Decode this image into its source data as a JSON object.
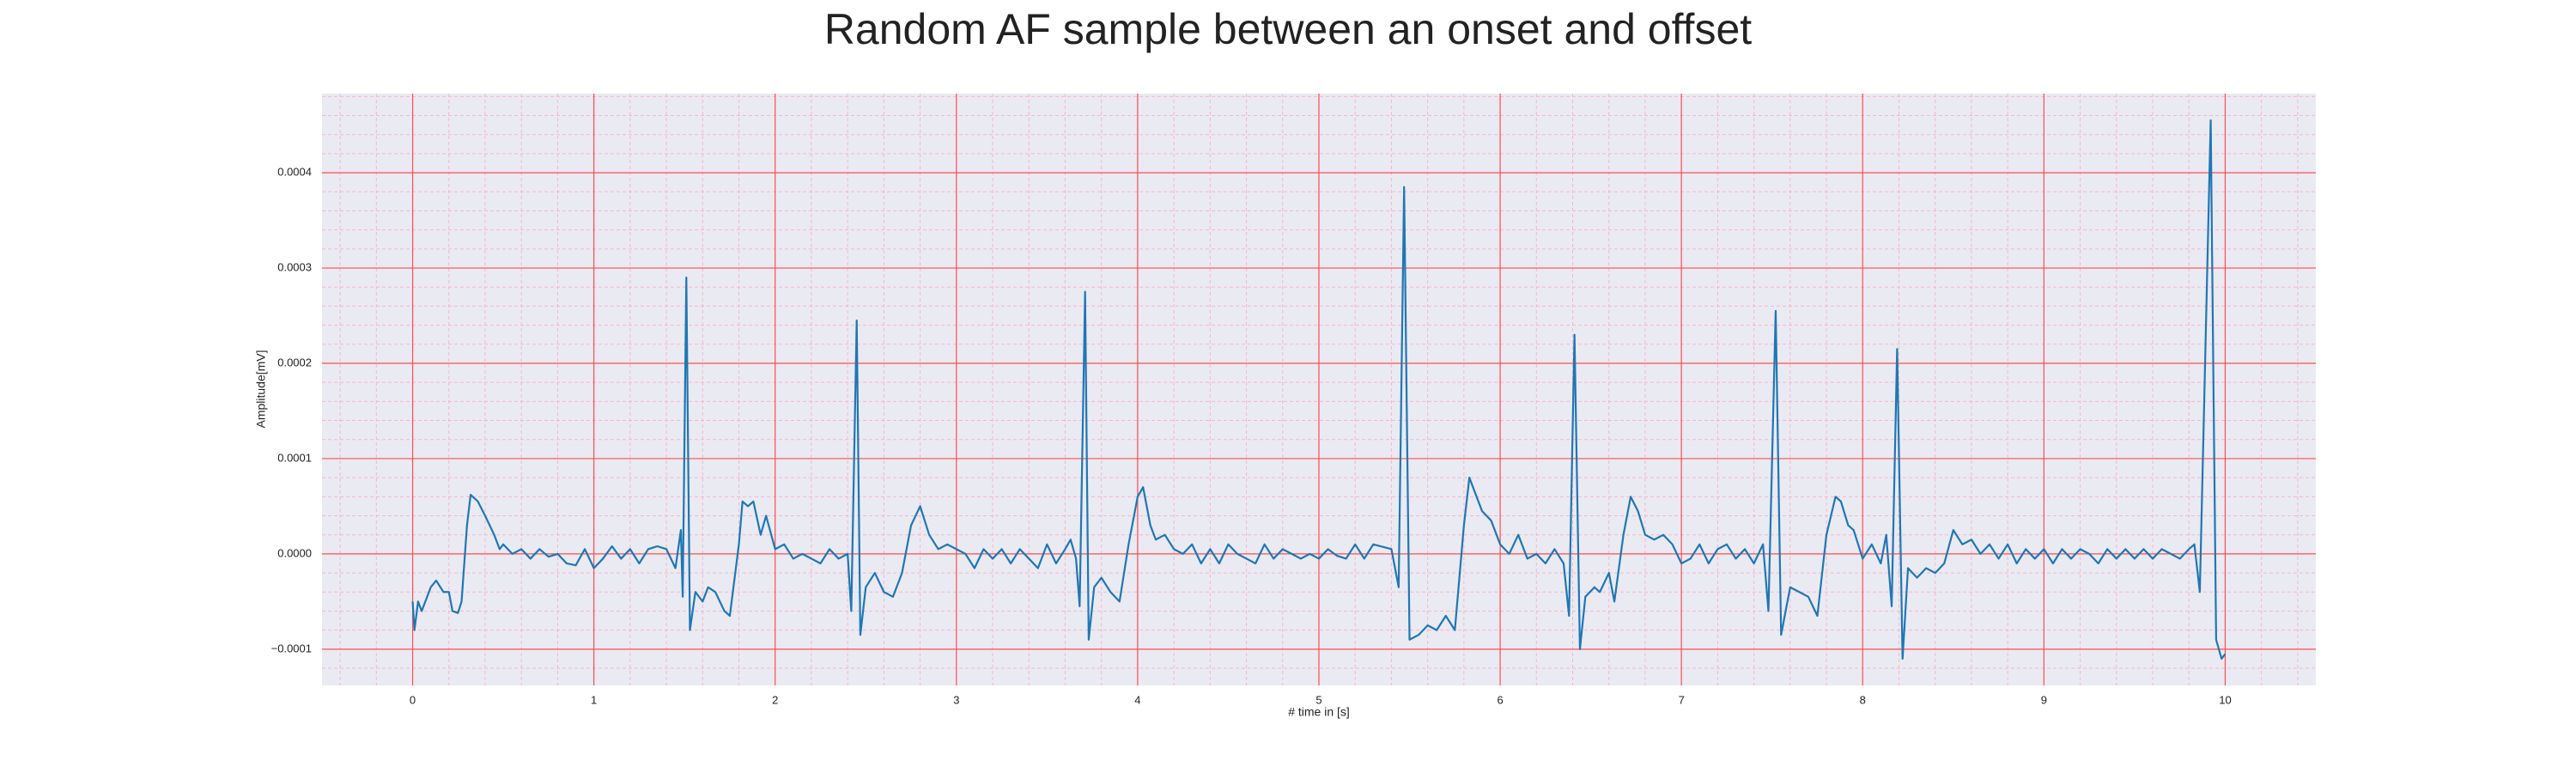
{
  "chart_data": {
    "type": "line",
    "title": "Random AF sample between an onset and offset",
    "xlabel": "# time in [s]",
    "ylabel": "Amplitude[mV]",
    "color": "#1f77b4",
    "xlim": [
      -0.5,
      10.5
    ],
    "ylim": [
      -0.000138,
      0.000483
    ],
    "xticks": [
      0,
      1,
      2,
      3,
      4,
      5,
      6,
      7,
      8,
      9,
      10
    ],
    "yticks": [
      {
        "value": -0.0001,
        "label": "−0.0001"
      },
      {
        "value": 0,
        "label": "0.0000"
      },
      0.0001,
      0.0002,
      0.0003,
      0.0004
    ],
    "grid": true,
    "grid_color": "#ff4d4d",
    "minor_grid_divisions": 5,
    "minor_grid_color": "#f5b8c8",
    "background": "#eaeaf2",
    "x": [
      0.0,
      0.01,
      0.03,
      0.05,
      0.1,
      0.13,
      0.17,
      0.2,
      0.22,
      0.25,
      0.27,
      0.3,
      0.32,
      0.36,
      0.4,
      0.45,
      0.48,
      0.5,
      0.55,
      0.6,
      0.65,
      0.7,
      0.75,
      0.8,
      0.85,
      0.9,
      0.95,
      1.0,
      1.05,
      1.1,
      1.15,
      1.2,
      1.25,
      1.3,
      1.35,
      1.4,
      1.45,
      1.48,
      1.49,
      1.51,
      1.53,
      1.56,
      1.6,
      1.63,
      1.67,
      1.72,
      1.75,
      1.8,
      1.82,
      1.85,
      1.88,
      1.92,
      1.95,
      2.0,
      2.05,
      2.1,
      2.15,
      2.2,
      2.25,
      2.3,
      2.35,
      2.4,
      2.42,
      2.45,
      2.47,
      2.5,
      2.55,
      2.6,
      2.65,
      2.7,
      2.75,
      2.8,
      2.85,
      2.9,
      2.95,
      3.0,
      3.05,
      3.1,
      3.15,
      3.2,
      3.25,
      3.3,
      3.35,
      3.4,
      3.45,
      3.5,
      3.55,
      3.6,
      3.63,
      3.66,
      3.68,
      3.71,
      3.73,
      3.76,
      3.8,
      3.85,
      3.9,
      3.95,
      4.0,
      4.03,
      4.07,
      4.1,
      4.15,
      4.2,
      4.25,
      4.3,
      4.35,
      4.4,
      4.45,
      4.5,
      4.55,
      4.6,
      4.65,
      4.7,
      4.75,
      4.8,
      4.85,
      4.9,
      4.95,
      5.0,
      5.05,
      5.1,
      5.15,
      5.2,
      5.25,
      5.3,
      5.4,
      5.44,
      5.47,
      5.5,
      5.55,
      5.6,
      5.65,
      5.7,
      5.75,
      5.8,
      5.83,
      5.87,
      5.9,
      5.95,
      6.0,
      6.05,
      6.1,
      6.15,
      6.2,
      6.25,
      6.3,
      6.35,
      6.38,
      6.41,
      6.44,
      6.47,
      6.52,
      6.55,
      6.6,
      6.63,
      6.68,
      6.72,
      6.76,
      6.8,
      6.85,
      6.9,
      6.95,
      7.0,
      7.05,
      7.1,
      7.15,
      7.2,
      7.25,
      7.3,
      7.35,
      7.4,
      7.45,
      7.48,
      7.52,
      7.55,
      7.6,
      7.65,
      7.7,
      7.75,
      7.8,
      7.85,
      7.88,
      7.92,
      7.95,
      8.0,
      8.05,
      8.1,
      8.13,
      8.16,
      8.19,
      8.22,
      8.25,
      8.3,
      8.35,
      8.4,
      8.45,
      8.5,
      8.55,
      8.6,
      8.65,
      8.7,
      8.75,
      8.8,
      8.85,
      8.9,
      8.95,
      9.0,
      9.05,
      9.1,
      9.15,
      9.2,
      9.25,
      9.3,
      9.35,
      9.4,
      9.45,
      9.5,
      9.55,
      9.6,
      9.65,
      9.7,
      9.75,
      9.8,
      9.83,
      9.86,
      9.92,
      9.95,
      9.98,
      10.0
    ],
    "values": [
      -5e-05,
      -8e-05,
      -5e-05,
      -6e-05,
      -3.5e-05,
      -2.8e-05,
      -4e-05,
      -4e-05,
      -6e-05,
      -6.2e-05,
      -5e-05,
      3e-05,
      6.2e-05,
      5.5e-05,
      4e-05,
      2e-05,
      5e-06,
      1e-05,
      0.0,
      5e-06,
      -5e-06,
      5e-06,
      -3e-06,
      0.0,
      -1e-05,
      -1.2e-05,
      5e-06,
      -1.5e-05,
      -5e-06,
      8e-06,
      -5e-06,
      5e-06,
      -1e-05,
      5e-06,
      8e-06,
      5e-06,
      -1.5e-05,
      2.5e-05,
      -4.5e-05,
      0.00029,
      -8e-05,
      -4e-05,
      -5e-05,
      -3.5e-05,
      -4e-05,
      -6e-05,
      -6.5e-05,
      1e-05,
      5.5e-05,
      5e-05,
      5.5e-05,
      2e-05,
      4e-05,
      5e-06,
      1e-05,
      -5e-06,
      0.0,
      -5e-06,
      -1e-05,
      5e-06,
      -5e-06,
      0.0,
      -6e-05,
      0.000245,
      -8.5e-05,
      -3.5e-05,
      -2e-05,
      -4e-05,
      -4.5e-05,
      -2e-05,
      3e-05,
      5e-05,
      2e-05,
      5e-06,
      1e-05,
      5e-06,
      0.0,
      -1.5e-05,
      5e-06,
      -5e-06,
      5e-06,
      -1e-05,
      5e-06,
      -5e-06,
      -1.5e-05,
      1e-05,
      -1e-05,
      5e-06,
      1.5e-05,
      -5e-06,
      -5.5e-05,
      0.000275,
      -9e-05,
      -3.5e-05,
      -2.5e-05,
      -4e-05,
      -5e-05,
      1e-05,
      6e-05,
      7e-05,
      3e-05,
      1.5e-05,
      2e-05,
      5e-06,
      0.0,
      1e-05,
      -1e-05,
      5e-06,
      -1e-05,
      1e-05,
      0.0,
      -5e-06,
      -1e-05,
      1e-05,
      -5e-06,
      5e-06,
      0.0,
      -5e-06,
      0.0,
      -5e-06,
      5e-06,
      -2e-06,
      -5e-06,
      1e-05,
      -5e-06,
      1e-05,
      5e-06,
      -3.5e-05,
      0.000385,
      -9e-05,
      -8.5e-05,
      -7.5e-05,
      -8e-05,
      -6.5e-05,
      -8e-05,
      3e-05,
      8e-05,
      6e-05,
      4.5e-05,
      3.5e-05,
      1e-05,
      0.0,
      2e-05,
      -5e-06,
      0.0,
      -1e-05,
      5e-06,
      -1e-05,
      -6.5e-05,
      0.00023,
      -0.0001,
      -4.5e-05,
      -3.5e-05,
      -4e-05,
      -2e-05,
      -5e-05,
      2e-05,
      6e-05,
      4.5e-05,
      2e-05,
      1.5e-05,
      2e-05,
      1e-05,
      -1e-05,
      -5e-06,
      1e-05,
      -1e-05,
      5e-06,
      1e-05,
      -5e-06,
      5e-06,
      -1e-05,
      1e-05,
      -6e-05,
      0.000255,
      -8.5e-05,
      -3.5e-05,
      -4e-05,
      -4.5e-05,
      -6.5e-05,
      2e-05,
      6e-05,
      5.5e-05,
      3e-05,
      2.5e-05,
      -5e-06,
      1e-05,
      -1e-05,
      2e-05,
      -5.5e-05,
      0.000215,
      -0.00011,
      -1.5e-05,
      -2.5e-05,
      -1.5e-05,
      -2e-05,
      -1e-05,
      2.5e-05,
      1e-05,
      1.5e-05,
      0.0,
      1e-05,
      -5e-06,
      1e-05,
      -1e-05,
      5e-06,
      -5e-06,
      5e-06,
      -1e-05,
      5e-06,
      -5e-06,
      5e-06,
      0.0,
      -1e-05,
      5e-06,
      -5e-06,
      5e-06,
      -5e-06,
      5e-06,
      -5e-06,
      5e-06,
      0.0,
      -5e-06,
      5e-06,
      1e-05,
      -4e-05,
      0.000455,
      -9e-05,
      -0.00011,
      -0.000105
    ]
  }
}
